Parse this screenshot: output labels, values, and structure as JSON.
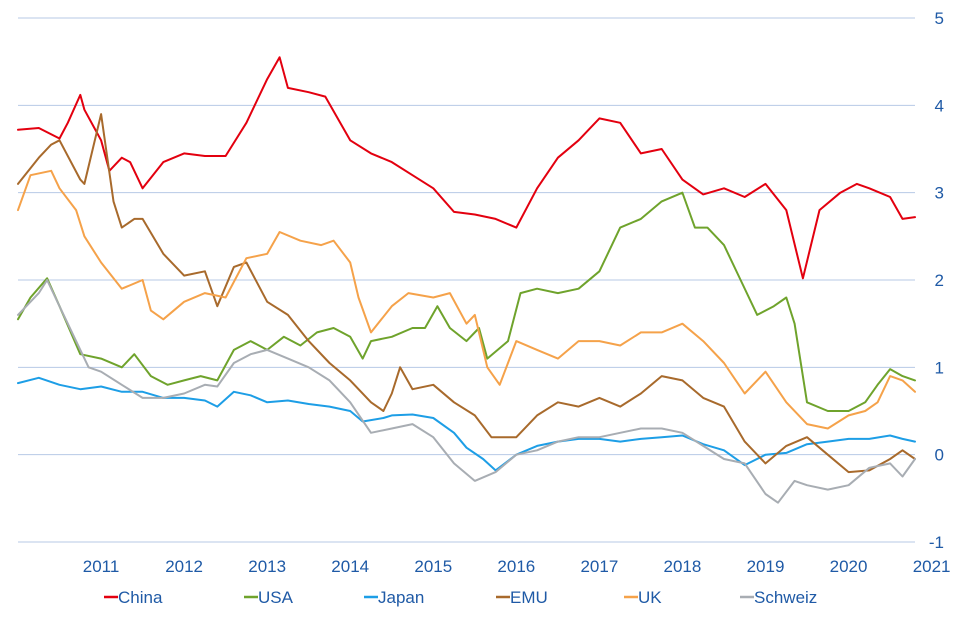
{
  "chart_data": {
    "type": "line",
    "title": "",
    "xlabel": "",
    "ylabel": "",
    "xlim": [
      2010.5,
      2021.3
    ],
    "ylim": [
      -1,
      5
    ],
    "y_ticks": [
      -1,
      0,
      1,
      2,
      3,
      4,
      5
    ],
    "x_ticks": [
      2011,
      2012,
      2013,
      2014,
      2015,
      2016,
      2017,
      2018,
      2019,
      2020,
      2021
    ],
    "y_axis_side": "right",
    "grid": "horizontal",
    "legend_position": "bottom",
    "series": [
      {
        "name": "China",
        "color": "#e3000f",
        "x": [
          2010.5,
          2010.75,
          2011.0,
          2011.1,
          2011.25,
          2011.3,
          2011.5,
          2011.6,
          2011.75,
          2011.85,
          2012.0,
          2012.25,
          2012.5,
          2012.75,
          2013.0,
          2013.25,
          2013.5,
          2013.65,
          2013.75,
          2014.0,
          2014.2,
          2014.5,
          2014.75,
          2015.0,
          2015.25,
          2015.5,
          2015.75,
          2016.0,
          2016.25,
          2016.5,
          2016.75,
          2017.0,
          2017.25,
          2017.5,
          2017.75,
          2018.0,
          2018.25,
          2018.5,
          2018.75,
          2019.0,
          2019.25,
          2019.5,
          2019.75,
          2019.95,
          2020.15,
          2020.4,
          2020.6,
          2020.75,
          2021.0,
          2021.15,
          2021.3
        ],
        "y": [
          3.72,
          3.74,
          3.62,
          3.8,
          4.12,
          3.95,
          3.6,
          3.25,
          3.4,
          3.35,
          3.05,
          3.35,
          3.45,
          3.42,
          3.42,
          3.8,
          4.3,
          4.55,
          4.2,
          4.15,
          4.1,
          3.6,
          3.45,
          3.35,
          3.2,
          3.05,
          2.78,
          2.75,
          2.7,
          2.6,
          3.05,
          3.4,
          3.6,
          3.85,
          3.8,
          3.45,
          3.5,
          3.15,
          2.98,
          3.05,
          2.95,
          3.1,
          2.8,
          2.02,
          2.8,
          3.0,
          3.1,
          3.05,
          2.95,
          2.7,
          2.72
        ]
      },
      {
        "name": "USA",
        "color": "#6fa32c",
        "x": [
          2010.5,
          2010.65,
          2010.85,
          2011.0,
          2011.25,
          2011.5,
          2011.75,
          2011.9,
          2012.1,
          2012.3,
          2012.5,
          2012.7,
          2012.9,
          2013.1,
          2013.3,
          2013.5,
          2013.7,
          2013.9,
          2014.1,
          2014.3,
          2014.5,
          2014.65,
          2014.75,
          2015.0,
          2015.25,
          2015.4,
          2015.55,
          2015.7,
          2015.9,
          2016.05,
          2016.15,
          2016.4,
          2016.55,
          2016.75,
          2017.0,
          2017.25,
          2017.5,
          2017.75,
          2018.0,
          2018.25,
          2018.5,
          2018.65,
          2018.8,
          2019.0,
          2019.2,
          2019.4,
          2019.6,
          2019.75,
          2019.85,
          2020.0,
          2020.25,
          2020.5,
          2020.7,
          2020.85,
          2021.0,
          2021.15,
          2021.3
        ],
        "y": [
          1.55,
          1.8,
          2.02,
          1.7,
          1.15,
          1.1,
          1.0,
          1.15,
          0.9,
          0.8,
          0.85,
          0.9,
          0.85,
          1.2,
          1.3,
          1.2,
          1.35,
          1.25,
          1.4,
          1.45,
          1.35,
          1.1,
          1.3,
          1.35,
          1.45,
          1.45,
          1.7,
          1.45,
          1.3,
          1.45,
          1.1,
          1.3,
          1.85,
          1.9,
          1.85,
          1.9,
          2.1,
          2.6,
          2.7,
          2.9,
          3.0,
          2.6,
          2.6,
          2.4,
          2.0,
          1.6,
          1.7,
          1.8,
          1.5,
          0.6,
          0.5,
          0.5,
          0.6,
          0.8,
          0.98,
          0.9,
          0.85
        ]
      },
      {
        "name": "Japan",
        "color": "#1d9ee6",
        "x": [
          2010.5,
          2010.75,
          2011.0,
          2011.25,
          2011.5,
          2011.75,
          2012.0,
          2012.25,
          2012.5,
          2012.75,
          2012.9,
          2013.1,
          2013.3,
          2013.5,
          2013.75,
          2014.0,
          2014.25,
          2014.5,
          2014.65,
          2014.9,
          2015.0,
          2015.25,
          2015.5,
          2015.75,
          2015.9,
          2016.1,
          2016.25,
          2016.5,
          2016.75,
          2017.0,
          2017.25,
          2017.5,
          2017.75,
          2018.0,
          2018.25,
          2018.5,
          2018.75,
          2019.0,
          2019.25,
          2019.5,
          2019.75,
          2020.0,
          2020.25,
          2020.5,
          2020.75,
          2021.0,
          2021.15,
          2021.3
        ],
        "y": [
          0.82,
          0.88,
          0.8,
          0.75,
          0.78,
          0.72,
          0.72,
          0.65,
          0.65,
          0.62,
          0.55,
          0.72,
          0.68,
          0.6,
          0.62,
          0.58,
          0.55,
          0.5,
          0.38,
          0.42,
          0.45,
          0.46,
          0.42,
          0.25,
          0.08,
          -0.05,
          -0.18,
          0.0,
          0.1,
          0.15,
          0.18,
          0.18,
          0.15,
          0.18,
          0.2,
          0.22,
          0.12,
          0.05,
          -0.12,
          0.0,
          0.02,
          0.12,
          0.15,
          0.18,
          0.18,
          0.22,
          0.18,
          0.15
        ]
      },
      {
        "name": "EMU",
        "color": "#a86a2c",
        "x": [
          2010.5,
          2010.75,
          2010.9,
          2011.0,
          2011.25,
          2011.3,
          2011.5,
          2011.65,
          2011.75,
          2011.9,
          2012.0,
          2012.25,
          2012.5,
          2012.75,
          2012.9,
          2013.1,
          2013.25,
          2013.5,
          2013.75,
          2014.0,
          2014.25,
          2014.5,
          2014.75,
          2014.9,
          2015.0,
          2015.1,
          2015.25,
          2015.5,
          2015.75,
          2016.0,
          2016.2,
          2016.5,
          2016.75,
          2017.0,
          2017.25,
          2017.5,
          2017.75,
          2018.0,
          2018.25,
          2018.5,
          2018.75,
          2019.0,
          2019.25,
          2019.5,
          2019.75,
          2020.0,
          2020.25,
          2020.5,
          2020.75,
          2021.0,
          2021.15,
          2021.3
        ],
        "y": [
          3.1,
          3.4,
          3.55,
          3.6,
          3.15,
          3.1,
          3.9,
          2.9,
          2.6,
          2.7,
          2.7,
          2.3,
          2.05,
          2.1,
          1.7,
          2.15,
          2.2,
          1.75,
          1.6,
          1.3,
          1.05,
          0.85,
          0.6,
          0.5,
          0.7,
          1.0,
          0.75,
          0.8,
          0.6,
          0.45,
          0.2,
          0.2,
          0.45,
          0.6,
          0.55,
          0.65,
          0.55,
          0.7,
          0.9,
          0.85,
          0.65,
          0.55,
          0.15,
          -0.1,
          0.1,
          0.2,
          0.0,
          -0.2,
          -0.18,
          -0.05,
          0.05,
          -0.05
        ]
      },
      {
        "name": "UK",
        "color": "#f5a24a",
        "x": [
          2010.5,
          2010.65,
          2010.9,
          2011.0,
          2011.2,
          2011.3,
          2011.5,
          2011.75,
          2012.0,
          2012.1,
          2012.25,
          2012.5,
          2012.75,
          2013.0,
          2013.25,
          2013.5,
          2013.65,
          2013.9,
          2014.15,
          2014.3,
          2014.5,
          2014.6,
          2014.75,
          2015.0,
          2015.2,
          2015.5,
          2015.7,
          2015.9,
          2016.0,
          2016.15,
          2016.3,
          2016.5,
          2016.75,
          2017.0,
          2017.25,
          2017.5,
          2017.75,
          2018.0,
          2018.25,
          2018.5,
          2018.75,
          2019.0,
          2019.25,
          2019.5,
          2019.75,
          2020.0,
          2020.25,
          2020.5,
          2020.7,
          2020.85,
          2021.0,
          2021.15,
          2021.3
        ],
        "y": [
          2.8,
          3.2,
          3.25,
          3.05,
          2.8,
          2.5,
          2.2,
          1.9,
          2.0,
          1.65,
          1.55,
          1.75,
          1.85,
          1.8,
          2.25,
          2.3,
          2.55,
          2.45,
          2.4,
          2.45,
          2.2,
          1.8,
          1.4,
          1.7,
          1.85,
          1.8,
          1.85,
          1.5,
          1.6,
          1.0,
          0.8,
          1.3,
          1.2,
          1.1,
          1.3,
          1.3,
          1.25,
          1.4,
          1.4,
          1.5,
          1.3,
          1.05,
          0.7,
          0.95,
          0.6,
          0.35,
          0.3,
          0.45,
          0.5,
          0.6,
          0.9,
          0.85,
          0.72
        ]
      },
      {
        "name": "Schweiz",
        "color": "#a8adb3",
        "x": [
          2010.5,
          2010.75,
          2010.85,
          2011.0,
          2011.2,
          2011.35,
          2011.5,
          2011.75,
          2012.0,
          2012.25,
          2012.5,
          2012.75,
          2012.9,
          2013.1,
          2013.3,
          2013.5,
          2013.75,
          2014.0,
          2014.25,
          2014.5,
          2014.75,
          2015.0,
          2015.25,
          2015.5,
          2015.75,
          2016.0,
          2016.25,
          2016.5,
          2016.75,
          2017.0,
          2017.25,
          2017.5,
          2017.75,
          2018.0,
          2018.25,
          2018.5,
          2018.75,
          2019.0,
          2019.25,
          2019.5,
          2019.65,
          2019.85,
          2020.0,
          2020.25,
          2020.5,
          2020.75,
          2021.0,
          2021.15,
          2021.3
        ],
        "y": [
          1.6,
          1.85,
          2.0,
          1.7,
          1.3,
          1.0,
          0.95,
          0.8,
          0.65,
          0.65,
          0.7,
          0.8,
          0.78,
          1.05,
          1.15,
          1.2,
          1.1,
          1.0,
          0.85,
          0.6,
          0.25,
          0.3,
          0.35,
          0.2,
          -0.1,
          -0.3,
          -0.2,
          0.0,
          0.05,
          0.15,
          0.2,
          0.2,
          0.25,
          0.3,
          0.3,
          0.25,
          0.1,
          -0.05,
          -0.1,
          -0.45,
          -0.55,
          -0.3,
          -0.35,
          -0.4,
          -0.35,
          -0.15,
          -0.1,
          -0.25,
          -0.05
        ]
      }
    ]
  }
}
